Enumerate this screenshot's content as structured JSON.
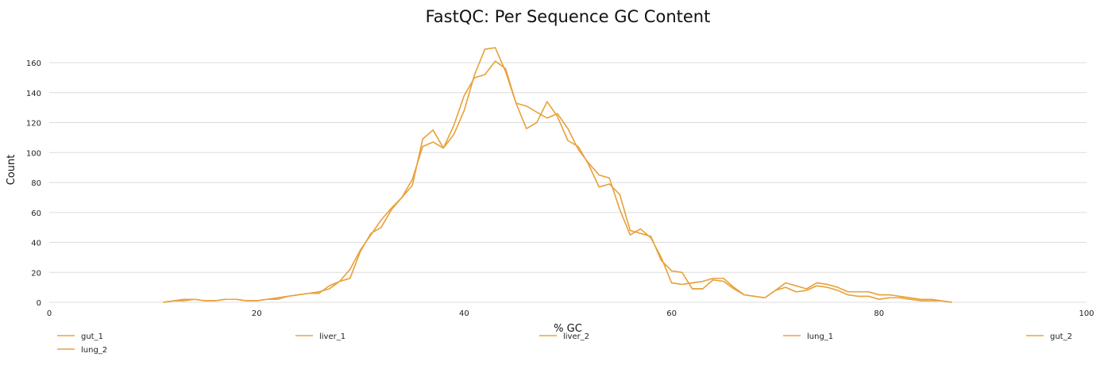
{
  "chart_data": {
    "type": "line",
    "title": "FastQC: Per Sequence GC Content",
    "xlabel": "% GC",
    "ylabel": "Count",
    "xlim": [
      0,
      100
    ],
    "ylim": [
      0,
      170
    ],
    "xticks": [
      0,
      20,
      40,
      60,
      80,
      100
    ],
    "yticks": [
      0,
      20,
      40,
      60,
      80,
      100,
      120,
      140,
      160
    ],
    "grid": "horizontal",
    "legend_position": "bottom",
    "series_color": "#e8a33d",
    "series": [
      {
        "name": "gut_1",
        "x": [
          11,
          12,
          13,
          14,
          15,
          16,
          17,
          18,
          19,
          20,
          21,
          22,
          23,
          24,
          25,
          26,
          27,
          28,
          29,
          30,
          31,
          32,
          33,
          34,
          35,
          36,
          37,
          38,
          39,
          40,
          41,
          42,
          43,
          44,
          45,
          46,
          47,
          48,
          49,
          50,
          51,
          52,
          53,
          54,
          55,
          56,
          57,
          58,
          59,
          60,
          61,
          62,
          63,
          64,
          65,
          66,
          67,
          68,
          69,
          70,
          71,
          72,
          73,
          74,
          75,
          76,
          77,
          78,
          79,
          80,
          81,
          82,
          83,
          84,
          85,
          86,
          87
        ],
        "y": [
          0,
          1,
          1,
          2,
          1,
          1,
          2,
          2,
          1,
          1,
          2,
          2,
          4,
          5,
          6,
          6,
          11,
          14,
          16,
          34,
          46,
          50,
          62,
          70,
          78,
          109,
          115,
          103,
          118,
          138,
          150,
          152,
          161,
          156,
          133,
          131,
          127,
          123,
          126,
          116,
          102,
          93,
          85,
          83,
          62,
          45,
          49,
          43,
          30,
          13,
          12,
          13,
          14,
          16,
          16,
          10,
          5,
          4,
          3,
          8,
          13,
          11,
          9,
          13,
          12,
          10,
          7,
          7,
          7,
          5,
          5,
          4,
          3,
          2,
          2,
          1,
          0
        ]
      },
      {
        "name": "liver_1",
        "x": [
          11,
          12,
          13,
          14,
          15,
          16,
          17,
          18,
          19,
          20,
          21,
          22,
          23,
          24,
          25,
          26,
          27,
          28,
          29,
          30,
          31,
          32,
          33,
          34,
          35,
          36,
          37,
          38,
          39,
          40,
          41,
          42,
          43,
          44,
          45,
          46,
          47,
          48,
          49,
          50,
          51,
          52,
          53,
          54,
          55,
          56,
          57,
          58,
          59,
          60,
          61,
          62,
          63,
          64,
          65,
          66,
          67,
          68,
          69,
          70,
          71,
          72,
          73,
          74,
          75,
          76,
          77,
          78,
          79,
          80,
          81,
          82,
          83,
          84,
          85,
          86,
          87
        ],
        "y": [
          0,
          1,
          2,
          2,
          1,
          1,
          2,
          2,
          1,
          1,
          2,
          3,
          4,
          5,
          6,
          7,
          9,
          14,
          22,
          35,
          45,
          55,
          63,
          70,
          82,
          104,
          107,
          103,
          112,
          128,
          152,
          169,
          170,
          154,
          133,
          116,
          120,
          134,
          124,
          108,
          104,
          92,
          77,
          79,
          72,
          48,
          46,
          44,
          28,
          21,
          20,
          9,
          9,
          15,
          14,
          9,
          5,
          4,
          3,
          8,
          10,
          7,
          8,
          11,
          10,
          8,
          5,
          4,
          4,
          2,
          3,
          3,
          2,
          1,
          1,
          1,
          0
        ]
      },
      {
        "name": "liver_2",
        "x": [
          11,
          12,
          13,
          14,
          15,
          16,
          17,
          18,
          19,
          20,
          21,
          22,
          23,
          24,
          25,
          26,
          27,
          28,
          29,
          30,
          31,
          32,
          33,
          34,
          35,
          36,
          37,
          38,
          39,
          40,
          41,
          42,
          43,
          44,
          45,
          46,
          47,
          48,
          49,
          50,
          51,
          52,
          53,
          54,
          55,
          56,
          57,
          58,
          59,
          60,
          61,
          62,
          63,
          64,
          65,
          66,
          67,
          68,
          69,
          70,
          71,
          72,
          73,
          74,
          75,
          76,
          77,
          78,
          79,
          80,
          81,
          82,
          83,
          84,
          85,
          86,
          87
        ],
        "y": [
          0,
          1,
          1,
          2,
          1,
          1,
          2,
          2,
          1,
          1,
          2,
          2,
          4,
          5,
          6,
          6,
          11,
          14,
          16,
          34,
          46,
          50,
          62,
          70,
          78,
          109,
          115,
          103,
          118,
          138,
          150,
          152,
          161,
          156,
          133,
          131,
          127,
          123,
          126,
          116,
          102,
          93,
          85,
          83,
          62,
          45,
          49,
          43,
          30,
          13,
          12,
          13,
          14,
          16,
          16,
          10,
          5,
          4,
          3,
          8,
          13,
          11,
          9,
          13,
          12,
          10,
          7,
          7,
          7,
          5,
          5,
          4,
          3,
          2,
          2,
          1,
          0
        ]
      },
      {
        "name": "lung_1",
        "x": [
          11,
          12,
          13,
          14,
          15,
          16,
          17,
          18,
          19,
          20,
          21,
          22,
          23,
          24,
          25,
          26,
          27,
          28,
          29,
          30,
          31,
          32,
          33,
          34,
          35,
          36,
          37,
          38,
          39,
          40,
          41,
          42,
          43,
          44,
          45,
          46,
          47,
          48,
          49,
          50,
          51,
          52,
          53,
          54,
          55,
          56,
          57,
          58,
          59,
          60,
          61,
          62,
          63,
          64,
          65,
          66,
          67,
          68,
          69,
          70,
          71,
          72,
          73,
          74,
          75,
          76,
          77,
          78,
          79,
          80,
          81,
          82,
          83,
          84,
          85,
          86,
          87
        ],
        "y": [
          0,
          1,
          2,
          2,
          1,
          1,
          2,
          2,
          1,
          1,
          2,
          3,
          4,
          5,
          6,
          7,
          9,
          14,
          22,
          35,
          45,
          55,
          63,
          70,
          82,
          104,
          107,
          103,
          112,
          128,
          152,
          169,
          170,
          154,
          133,
          116,
          120,
          134,
          124,
          108,
          104,
          92,
          77,
          79,
          72,
          48,
          46,
          44,
          28,
          21,
          20,
          9,
          9,
          15,
          14,
          9,
          5,
          4,
          3,
          8,
          10,
          7,
          8,
          11,
          10,
          8,
          5,
          4,
          4,
          2,
          3,
          3,
          2,
          1,
          1,
          1,
          0
        ]
      },
      {
        "name": "gut_2",
        "x": [
          11,
          12,
          13,
          14,
          15,
          16,
          17,
          18,
          19,
          20,
          21,
          22,
          23,
          24,
          25,
          26,
          27,
          28,
          29,
          30,
          31,
          32,
          33,
          34,
          35,
          36,
          37,
          38,
          39,
          40,
          41,
          42,
          43,
          44,
          45,
          46,
          47,
          48,
          49,
          50,
          51,
          52,
          53,
          54,
          55,
          56,
          57,
          58,
          59,
          60,
          61,
          62,
          63,
          64,
          65,
          66,
          67,
          68,
          69,
          70,
          71,
          72,
          73,
          74,
          75,
          76,
          77,
          78,
          79,
          80,
          81,
          82,
          83,
          84,
          85,
          86,
          87
        ],
        "y": [
          0,
          1,
          1,
          2,
          1,
          1,
          2,
          2,
          1,
          1,
          2,
          2,
          4,
          5,
          6,
          6,
          11,
          14,
          16,
          34,
          46,
          50,
          62,
          70,
          78,
          109,
          115,
          103,
          118,
          138,
          150,
          152,
          161,
          156,
          133,
          131,
          127,
          123,
          126,
          116,
          102,
          93,
          85,
          83,
          62,
          45,
          49,
          43,
          30,
          13,
          12,
          13,
          14,
          16,
          16,
          10,
          5,
          4,
          3,
          8,
          13,
          11,
          9,
          13,
          12,
          10,
          7,
          7,
          7,
          5,
          5,
          4,
          3,
          2,
          2,
          1,
          0
        ]
      },
      {
        "name": "lung_2",
        "x": [
          11,
          12,
          13,
          14,
          15,
          16,
          17,
          18,
          19,
          20,
          21,
          22,
          23,
          24,
          25,
          26,
          27,
          28,
          29,
          30,
          31,
          32,
          33,
          34,
          35,
          36,
          37,
          38,
          39,
          40,
          41,
          42,
          43,
          44,
          45,
          46,
          47,
          48,
          49,
          50,
          51,
          52,
          53,
          54,
          55,
          56,
          57,
          58,
          59,
          60,
          61,
          62,
          63,
          64,
          65,
          66,
          67,
          68,
          69,
          70,
          71,
          72,
          73,
          74,
          75,
          76,
          77,
          78,
          79,
          80,
          81,
          82,
          83,
          84,
          85,
          86,
          87
        ],
        "y": [
          0,
          1,
          2,
          2,
          1,
          1,
          2,
          2,
          1,
          1,
          2,
          3,
          4,
          5,
          6,
          7,
          9,
          14,
          22,
          35,
          45,
          55,
          63,
          70,
          82,
          104,
          107,
          103,
          112,
          128,
          152,
          169,
          170,
          154,
          133,
          116,
          120,
          134,
          124,
          108,
          104,
          92,
          77,
          79,
          72,
          48,
          46,
          44,
          28,
          21,
          20,
          9,
          9,
          15,
          14,
          9,
          5,
          4,
          3,
          8,
          10,
          7,
          8,
          11,
          10,
          8,
          5,
          4,
          4,
          2,
          3,
          3,
          2,
          1,
          1,
          1,
          0
        ]
      }
    ]
  }
}
